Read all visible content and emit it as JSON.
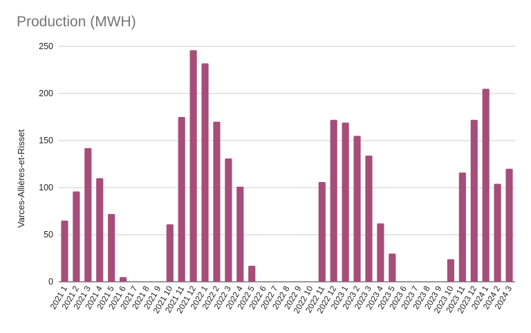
{
  "chart_data": {
    "type": "bar",
    "title": "Production (MWH)",
    "xlabel": "",
    "ylabel": "Varces-Allières-et-Risset",
    "ylim": [
      0,
      250
    ],
    "yticks": [
      0,
      50,
      100,
      150,
      200,
      250
    ],
    "grid": true,
    "bar_color": "#a64d79",
    "categories": [
      "2021 1",
      "2021 2",
      "2021 3",
      "2021 4",
      "2021 5",
      "2021 6",
      "2021 7",
      "2021 8",
      "2021 9",
      "2021 10",
      "2021 11",
      "2021 12",
      "2022 1",
      "2022 2",
      "2022 3",
      "2022 4",
      "2022 5",
      "2022 6",
      "2022 7",
      "2022 8",
      "2022 9",
      "2022 10",
      "2022 11",
      "2022 12",
      "2023 1",
      "2023 2",
      "2023 3",
      "2023 4",
      "2023 5",
      "2023 6",
      "2023 7",
      "2023 8",
      "2023 9",
      "2023 10",
      "2023 11",
      "2023 12",
      "2024 1",
      "2024 2",
      "2024 3"
    ],
    "values": [
      65,
      96,
      142,
      110,
      72,
      5,
      0,
      0,
      0,
      61,
      175,
      246,
      232,
      170,
      131,
      101,
      17,
      0,
      0,
      0,
      0,
      0,
      106,
      172,
      169,
      155,
      134,
      62,
      30,
      0,
      0,
      0,
      0,
      24,
      116,
      172,
      205,
      104,
      120
    ]
  }
}
